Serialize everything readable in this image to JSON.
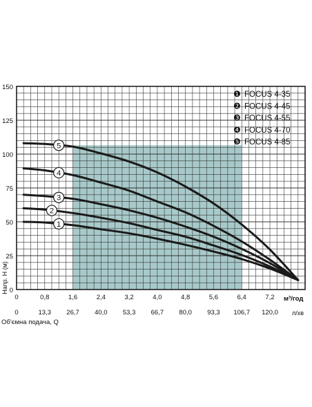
{
  "chart_data": {
    "type": "line",
    "title": "",
    "ylabel": "Напр. H (м)",
    "xlabel_primary": "Об'ємна подача, Q",
    "x_unit_primary": "м³/год",
    "x_unit_secondary": "л/хв",
    "ylim": [
      0,
      150
    ],
    "xlim": [
      0,
      8.2
    ],
    "y_ticks": [
      "0",
      "25",
      "50",
      "75",
      "100",
      "125",
      "150"
    ],
    "y_tick_values": [
      0,
      25,
      50,
      75,
      100,
      125,
      150
    ],
    "x_ticks_top": [
      "0",
      "0,8",
      "1,6",
      "2,4",
      "3,2",
      "4,0",
      "4,8",
      "5,6",
      "6,4",
      "7,2"
    ],
    "x_tick_values": [
      0,
      0.8,
      1.6,
      2.4,
      3.2,
      4.0,
      4.8,
      5.6,
      6.4,
      7.2
    ],
    "x_ticks_bottom": [
      "0",
      "13,3",
      "26,7",
      "40,0",
      "53,3",
      "66,7",
      "80,0",
      "93,3",
      "106,7",
      "120,0"
    ],
    "grid": true,
    "legend_position": "top-right",
    "recommended_range": [
      1.6,
      6.4
    ],
    "colors": {
      "curve": "#1a1a1a",
      "grid": "#333333",
      "shade": "#9fc3c3",
      "marker_fill": "#ffffff"
    },
    "series": [
      {
        "id": 1,
        "marker": "1",
        "legend_symbol": "❶",
        "name": "FOCUS 4-35",
        "marker_x": 1.2,
        "x": [
          0.2,
          0.8,
          1.6,
          2.4,
          3.2,
          4.0,
          4.8,
          5.6,
          6.4,
          7.2,
          8.0
        ],
        "y": [
          50,
          49.5,
          47.5,
          44.5,
          41.5,
          37.5,
          33,
          28,
          22.5,
          15.5,
          7
        ]
      },
      {
        "id": 2,
        "marker": "2",
        "legend_symbol": "❷",
        "name": "FOCUS 4-45",
        "marker_x": 1.0,
        "x": [
          0.2,
          0.8,
          1.6,
          2.4,
          3.2,
          4.0,
          4.8,
          5.6,
          6.4,
          7.2,
          8.0
        ],
        "y": [
          60,
          59,
          56.5,
          53,
          49,
          44,
          39,
          32.5,
          25.5,
          17,
          7
        ]
      },
      {
        "id": 3,
        "marker": "3",
        "legend_symbol": "❸",
        "name": "FOCUS 4-55",
        "marker_x": 1.2,
        "x": [
          0.2,
          0.8,
          1.6,
          2.4,
          3.2,
          4.0,
          4.8,
          5.6,
          6.4,
          7.2,
          8.0
        ],
        "y": [
          70,
          69,
          67,
          63,
          58.5,
          53,
          46.5,
          39,
          30,
          19.5,
          7
        ]
      },
      {
        "id": 4,
        "marker": "4",
        "legend_symbol": "❹",
        "name": "FOCUS 4-70",
        "marker_x": 1.2,
        "x": [
          0.2,
          0.8,
          1.6,
          2.4,
          3.2,
          4.0,
          4.8,
          5.6,
          6.4,
          7.2,
          8.0
        ],
        "y": [
          89.5,
          88,
          84.5,
          79,
          73,
          65,
          57,
          47,
          35.5,
          22,
          7
        ]
      },
      {
        "id": 5,
        "marker": "5",
        "legend_symbol": "❺",
        "name": "FOCUS 4-85",
        "marker_x": 1.2,
        "x": [
          0.2,
          0.8,
          1.6,
          2.4,
          3.2,
          4.0,
          4.8,
          5.6,
          6.4,
          7.2,
          8.0
        ],
        "y": [
          108,
          107.5,
          105.5,
          100.5,
          94.5,
          86.5,
          76,
          63.5,
          48,
          29.5,
          7
        ]
      }
    ]
  }
}
